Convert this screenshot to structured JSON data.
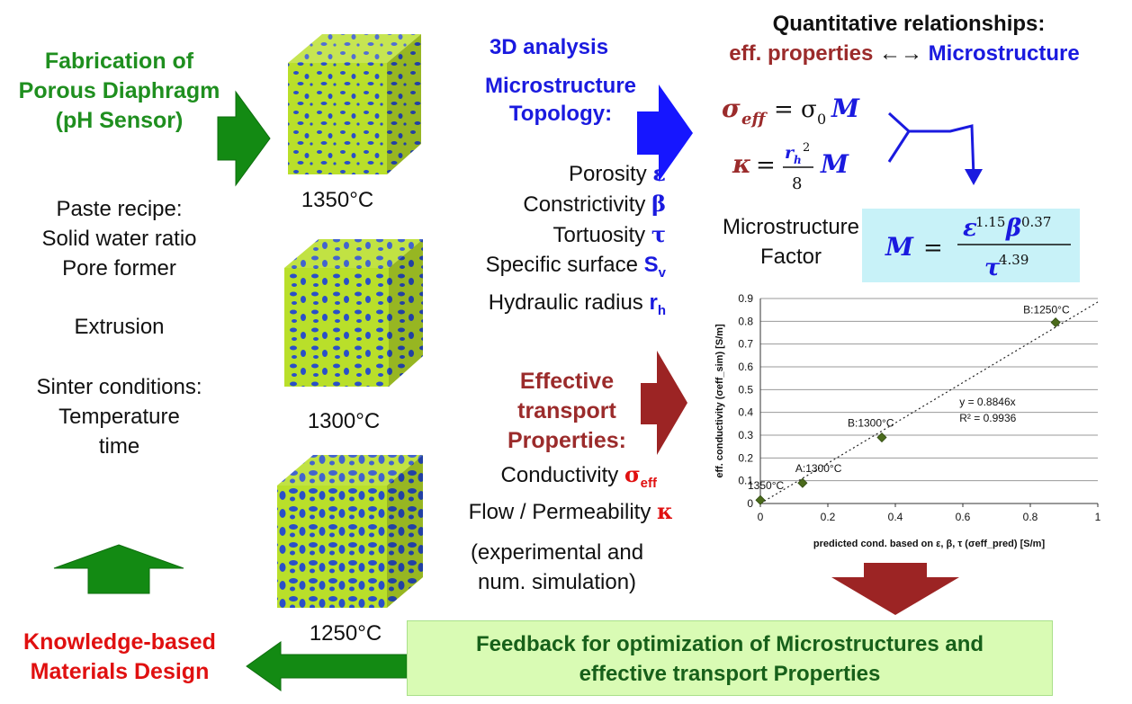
{
  "left": {
    "title": [
      "Fabrication of",
      "Porous Diaphragm",
      "(pH Sensor)"
    ],
    "recipe": [
      "Paste recipe:",
      "Solid water ratio",
      "Pore former"
    ],
    "extrusion": "Extrusion",
    "sinter": [
      "Sinter conditions:",
      "Temperature",
      "time"
    ],
    "design": [
      "Knowledge-based",
      "Materials Design"
    ]
  },
  "cubes": {
    "labels": [
      "1350°C",
      "1300°C",
      "1250°C"
    ]
  },
  "analysis": {
    "heading": "3D analysis",
    "topology": [
      "Microstructure",
      "Topology:"
    ],
    "params": [
      {
        "name": "Porosity",
        "symbol": "ε"
      },
      {
        "name": "Constrictivity",
        "symbol": "β"
      },
      {
        "name": "Tortuosity",
        "symbol": "τ"
      },
      {
        "name": "Specific surface",
        "symbol": "S",
        "sub": "v"
      },
      {
        "name": "Hydraulic radius",
        "symbol": "r",
        "sub": "h"
      }
    ]
  },
  "transport": {
    "heading": [
      "Effective",
      "transport",
      "Properties:"
    ],
    "conductivity": {
      "name": "Conductivity",
      "symbol": "σ",
      "sub": "eff"
    },
    "flow": {
      "name": "Flow / Permeability",
      "symbol": "κ"
    },
    "note": [
      "(experimental and",
      "num. simulation)"
    ]
  },
  "relations": {
    "title": "Quantitative relationships:",
    "left": "eff. properties",
    "arrow": "←→",
    "right": "Microstructure",
    "mf_label": [
      "Microstructure",
      "Factor"
    ]
  },
  "feedback": [
    "Feedback for optimization of Microstructures and",
    "effective transport Properties"
  ],
  "colors": {
    "green": "#1f8f1f",
    "blue": "#1a1adf",
    "red": "#e01010",
    "darkred": "#9b2b2b",
    "cube_yellow": "#b9df2a",
    "pore_blue": "#2a4fc8",
    "feedback_bg": "#d9fbb4",
    "formula_bg": "#c8f2f8"
  },
  "chart_data": {
    "type": "scatter",
    "xlabel": "predicted cond. based on ε, β, τ (σeff_pred) [S/m]",
    "ylabel": "eff. conductivity (σeff_sim) [S/m]",
    "xlim": [
      0,
      1
    ],
    "ylim": [
      0,
      0.9
    ],
    "xticks": [
      "0",
      "0.2",
      "0.4",
      "0.6",
      "0.8",
      "1"
    ],
    "yticks": [
      "0",
      "0.1",
      "0.2",
      "0.3",
      "0.4",
      "0.5",
      "0.6",
      "0.7",
      "0.8",
      "0.9"
    ],
    "grid": "horizontal",
    "points": [
      {
        "label": "1350°C",
        "x": 0.0,
        "y": 0.015
      },
      {
        "label": "A:1300°C",
        "x": 0.125,
        "y": 0.09
      },
      {
        "label": "B:1300°C",
        "x": 0.36,
        "y": 0.29
      },
      {
        "label": "B:1250°C",
        "x": 0.875,
        "y": 0.795
      }
    ],
    "trendline": {
      "slope": 0.8846,
      "equation": "y = 0.8846x",
      "r2": "R² = 0.9936"
    }
  }
}
